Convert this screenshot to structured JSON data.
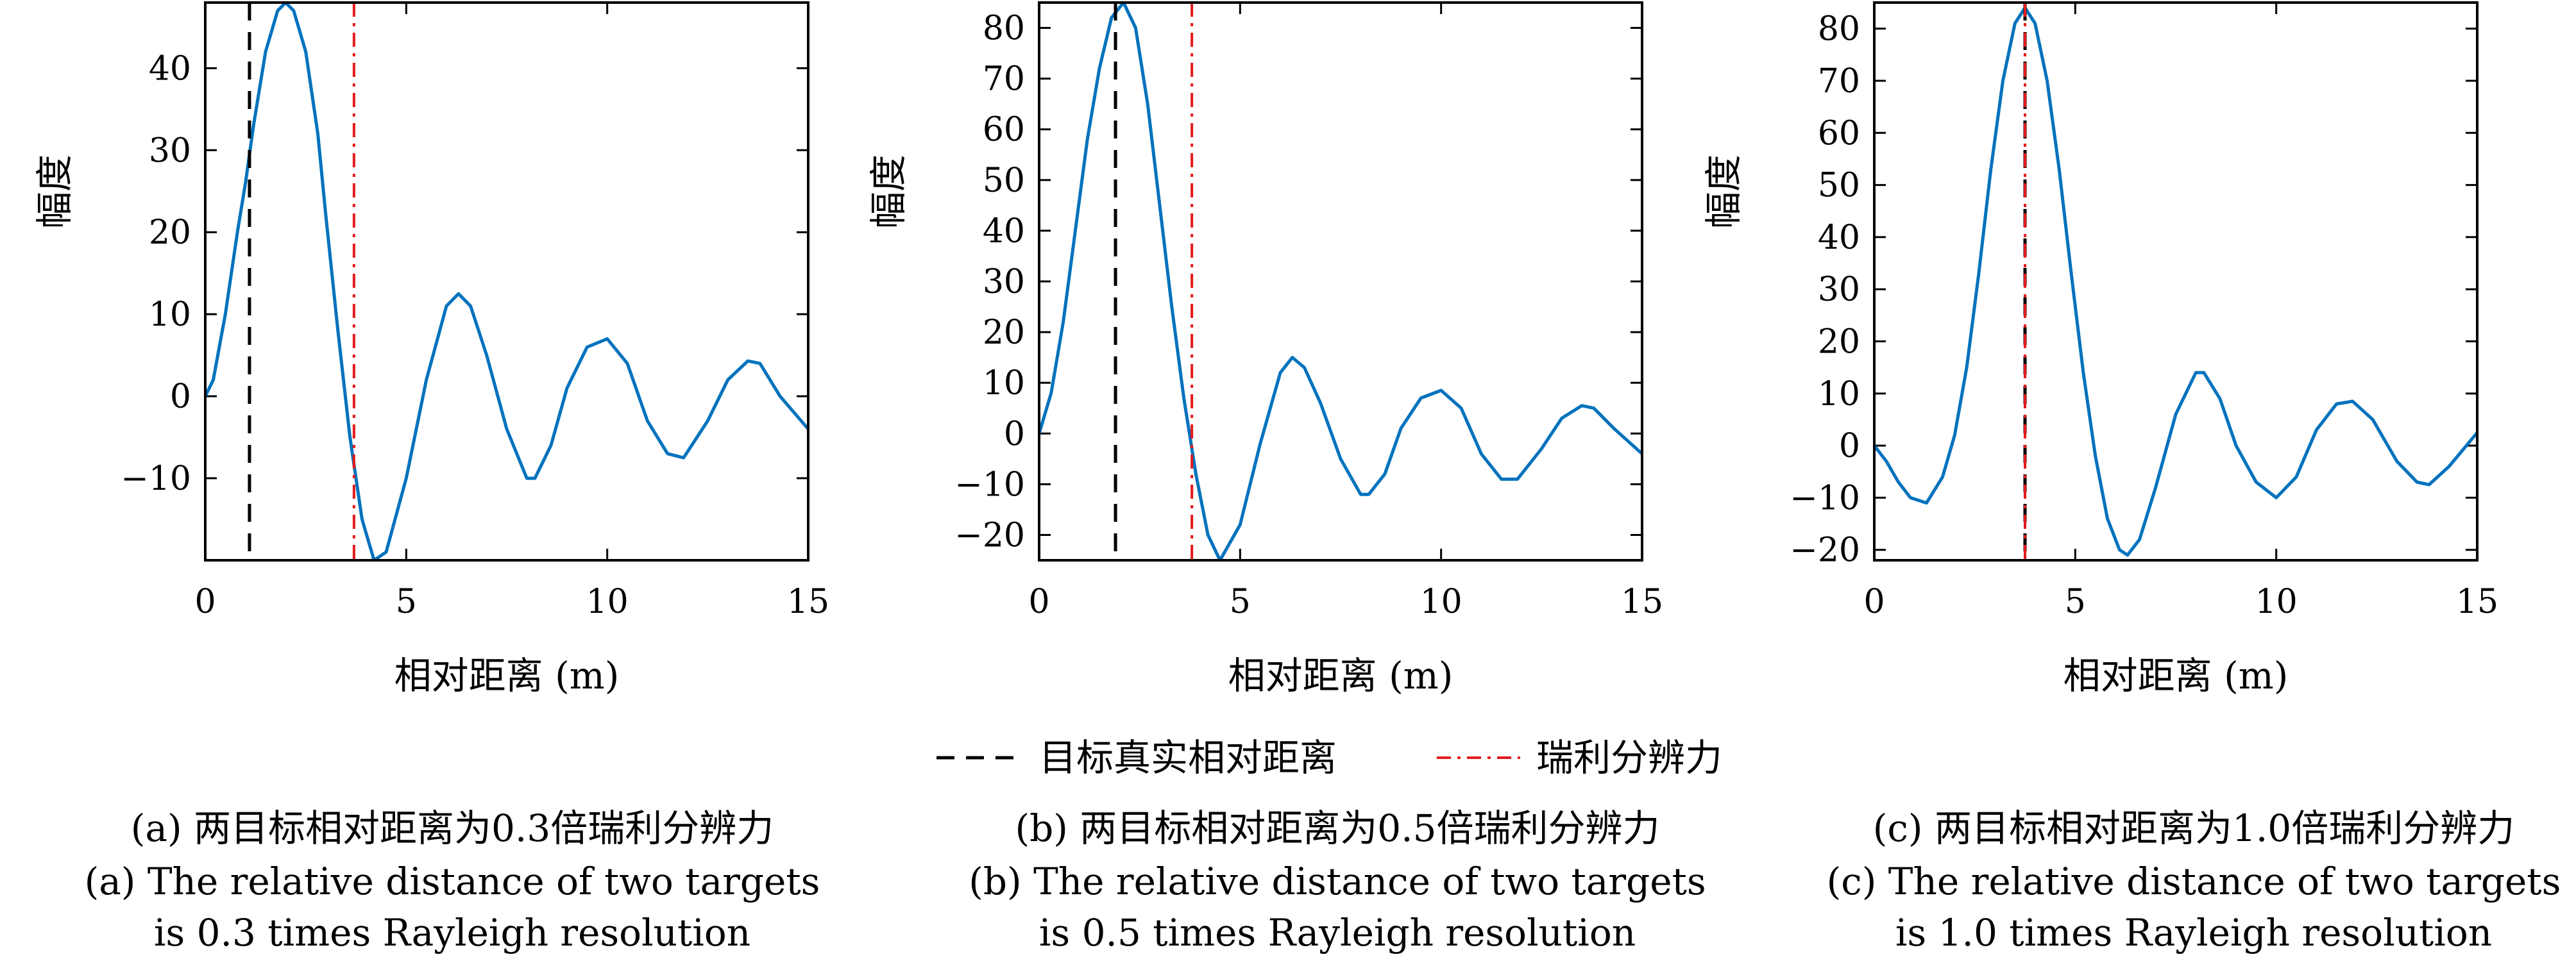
{
  "legend": {
    "target_label": "目标真实相对距离",
    "rayleigh_label": "瑞利分辨力",
    "target_color": "#000000",
    "rayleigh_color": "#e41a1c"
  },
  "curve_color": "#0072bd",
  "chart_data": [
    {
      "type": "line",
      "xlabel": "相对距离 (m)",
      "ylabel": "幅度",
      "xlim": [
        0,
        15
      ],
      "ylim": [
        -20,
        48
      ],
      "xticks": [
        0,
        5,
        10,
        15
      ],
      "yticks": [
        -10,
        0,
        10,
        20,
        30,
        40
      ],
      "ytick_labels": [
        "−10",
        "0",
        "10",
        "20",
        "30",
        "40"
      ],
      "target_distance": 1.1,
      "rayleigh_resolution": 3.7,
      "series": [
        {
          "x": [
            0,
            0.2,
            0.5,
            0.8,
            1.0,
            1.2,
            1.5,
            1.8,
            2.0,
            2.2,
            2.5,
            2.8,
            3.0,
            3.3,
            3.6,
            3.9,
            4.2,
            4.5,
            5.0,
            5.5,
            6.0,
            6.3,
            6.6,
            7.0,
            7.5,
            8.0,
            8.2,
            8.6,
            9.0,
            9.5,
            10.0,
            10.5,
            11.0,
            11.5,
            11.9,
            12.5,
            13.0,
            13.5,
            13.8,
            14.3,
            15.0
          ],
          "y": [
            0,
            2,
            10,
            20,
            26,
            33,
            42,
            47,
            48,
            47,
            42,
            32,
            22,
            8,
            -5,
            -15,
            -20,
            -19,
            -10,
            2,
            11,
            12.5,
            11,
            5,
            -4,
            -10,
            -10,
            -6,
            1,
            6,
            7,
            4,
            -3,
            -7,
            -7.5,
            -3,
            2,
            4.3,
            4,
            0,
            -4
          ]
        }
      ],
      "caption_cn": "(a) 两目标相对距离为0.3倍瑞利分辨力",
      "caption_en_1": "(a) The relative distance of two targets",
      "caption_en_2": "is 0.3 times Rayleigh resolution"
    },
    {
      "type": "line",
      "xlabel": "相对距离 (m)",
      "ylabel": "幅度",
      "xlim": [
        0,
        15
      ],
      "ylim": [
        -25,
        85
      ],
      "xticks": [
        0,
        5,
        10,
        15
      ],
      "yticks": [
        -20,
        -10,
        0,
        10,
        20,
        30,
        40,
        50,
        60,
        70,
        80
      ],
      "ytick_labels": [
        "−20",
        "−10",
        "0",
        "10",
        "20",
        "30",
        "40",
        "50",
        "60",
        "70",
        "80"
      ],
      "target_distance": 1.9,
      "rayleigh_resolution": 3.8,
      "series": [
        {
          "x": [
            0,
            0.3,
            0.6,
            0.9,
            1.2,
            1.5,
            1.8,
            2.1,
            2.4,
            2.7,
            3.0,
            3.3,
            3.6,
            3.9,
            4.2,
            4.5,
            5.0,
            5.5,
            6.0,
            6.3,
            6.6,
            7.0,
            7.5,
            8.0,
            8.2,
            8.6,
            9.0,
            9.5,
            10.0,
            10.5,
            11.0,
            11.5,
            11.9,
            12.5,
            13.0,
            13.5,
            13.8,
            14.3,
            15.0
          ],
          "y": [
            0,
            8,
            22,
            40,
            58,
            72,
            82,
            85,
            80,
            65,
            45,
            25,
            7,
            -8,
            -20,
            -25,
            -18,
            -2,
            12,
            15,
            13,
            6,
            -5,
            -12,
            -12,
            -8,
            1,
            7,
            8.5,
            5,
            -4,
            -9,
            -9,
            -3,
            3,
            5.5,
            5,
            1,
            -4
          ]
        }
      ],
      "caption_cn": "(b) 两目标相对距离为0.5倍瑞利分辨力",
      "caption_en_1": "(b) The relative distance of two targets",
      "caption_en_2": "is 0.5 times Rayleigh resolution"
    },
    {
      "type": "line",
      "xlabel": "相对距离 (m)",
      "ylabel": "幅度",
      "xlim": [
        0,
        15
      ],
      "ylim": [
        -22,
        85
      ],
      "xticks": [
        0,
        5,
        10,
        15
      ],
      "yticks": [
        -20,
        -10,
        0,
        10,
        20,
        30,
        40,
        50,
        60,
        70,
        80
      ],
      "ytick_labels": [
        "−20",
        "−10",
        "0",
        "10",
        "20",
        "30",
        "40",
        "50",
        "60",
        "70",
        "80"
      ],
      "target_distance": 3.75,
      "rayleigh_resolution": 3.75,
      "series": [
        {
          "x": [
            0,
            0.3,
            0.6,
            0.9,
            1.3,
            1.7,
            2.0,
            2.3,
            2.6,
            2.9,
            3.2,
            3.5,
            3.75,
            4.0,
            4.3,
            4.6,
            4.9,
            5.2,
            5.5,
            5.8,
            6.1,
            6.3,
            6.6,
            7.0,
            7.5,
            8.0,
            8.2,
            8.6,
            9.0,
            9.5,
            10.0,
            10.5,
            11.0,
            11.5,
            11.9,
            12.4,
            13.0,
            13.5,
            13.8,
            14.3,
            15.0
          ],
          "y": [
            0,
            -3,
            -7,
            -10,
            -11,
            -6,
            2,
            15,
            33,
            53,
            70,
            81,
            84,
            81,
            70,
            53,
            33,
            14,
            -2,
            -14,
            -20,
            -21,
            -18,
            -8,
            6,
            14,
            14,
            9,
            0,
            -7,
            -10,
            -6,
            3,
            8,
            8.5,
            5,
            -3,
            -7,
            -7.5,
            -4,
            2.5
          ]
        }
      ],
      "caption_cn": "(c) 两目标相对距离为1.0倍瑞利分辨力",
      "caption_en_1": "(c) The relative distance of two targets",
      "caption_en_2": "is 1.0 times Rayleigh resolution"
    }
  ]
}
